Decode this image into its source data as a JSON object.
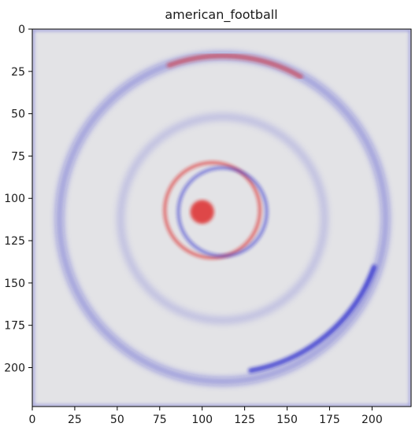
{
  "chart_data": {
    "type": "heatmap",
    "title": "american_football",
    "xlabel": "",
    "ylabel": "",
    "xlim": [
      0,
      223
    ],
    "ylim": [
      223,
      0
    ],
    "x_ticks": [
      0,
      25,
      50,
      75,
      100,
      125,
      150,
      175,
      200
    ],
    "y_ticks": [
      0,
      25,
      50,
      75,
      100,
      125,
      150,
      175,
      200
    ],
    "colormap": "bwr",
    "colors": {
      "positive": "#dd2020",
      "negative": "#1a1acc",
      "neutral": "#e3e3e6"
    },
    "features": [
      {
        "shape": "arc",
        "center": [
          112,
          112
        ],
        "radius": 96,
        "sign": "negative",
        "strength": 0.35
      },
      {
        "shape": "arc",
        "center": [
          112,
          112
        ],
        "radius": 60,
        "sign": "negative",
        "strength": 0.15
      },
      {
        "shape": "ring",
        "center": [
          106,
          107
        ],
        "radius": 28,
        "sign": "positive",
        "strength": 0.7
      },
      {
        "shape": "ring",
        "center": [
          112,
          108
        ],
        "radius": 26,
        "sign": "negative",
        "strength": 0.6
      },
      {
        "shape": "blob",
        "center": [
          100,
          108
        ],
        "radius": 7,
        "sign": "positive",
        "strength": 0.8
      },
      {
        "shape": "arc",
        "center": [
          112,
          108
        ],
        "radius": 95,
        "sign": "negative",
        "strength": 0.75,
        "range_deg": [
          20,
          80
        ]
      },
      {
        "shape": "arc",
        "center": [
          112,
          108
        ],
        "radius": 92,
        "sign": "positive",
        "strength": 0.55,
        "range_deg": [
          250,
          300
        ]
      }
    ],
    "grid": false
  }
}
